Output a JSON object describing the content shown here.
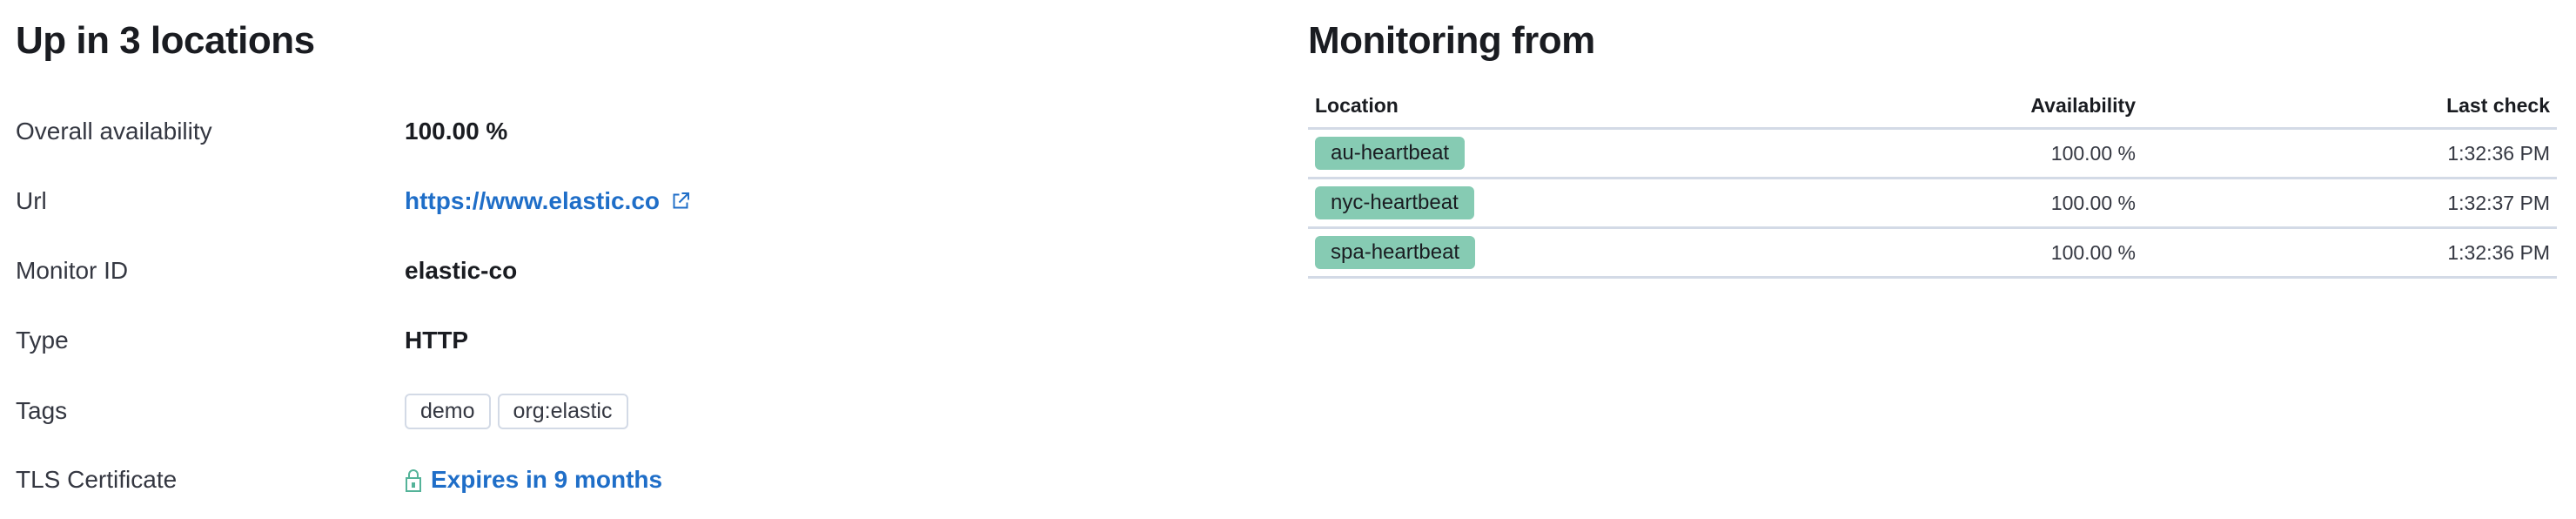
{
  "summary": {
    "title": "Up in 3 locations",
    "rows": [
      {
        "label": "Overall availability",
        "value": "100.00 %"
      },
      {
        "label": "Url",
        "value": "https://www.elastic.co",
        "icon": "external-link-icon"
      },
      {
        "label": "Monitor ID",
        "value": "elastic-co"
      },
      {
        "label": "Type",
        "value": "HTTP"
      },
      {
        "label": "Tags",
        "tags": [
          "demo",
          "org:elastic"
        ]
      },
      {
        "label": "TLS Certificate",
        "value": "Expires in 9 months",
        "icon": "lock-icon"
      }
    ],
    "link_color": "#1f6ec8"
  },
  "monitoring": {
    "title": "Monitoring from",
    "columns": [
      "Location",
      "Availability",
      "Last check"
    ],
    "rows": [
      {
        "location": "au-heartbeat",
        "availability": "100.00 %",
        "last_check": "1:32:36 PM"
      },
      {
        "location": "nyc-heartbeat",
        "availability": "100.00 %",
        "last_check": "1:32:37 PM"
      },
      {
        "location": "spa-heartbeat",
        "availability": "100.00 %",
        "last_check": "1:32:36 PM"
      }
    ],
    "badge_color": "#86cbb3"
  }
}
